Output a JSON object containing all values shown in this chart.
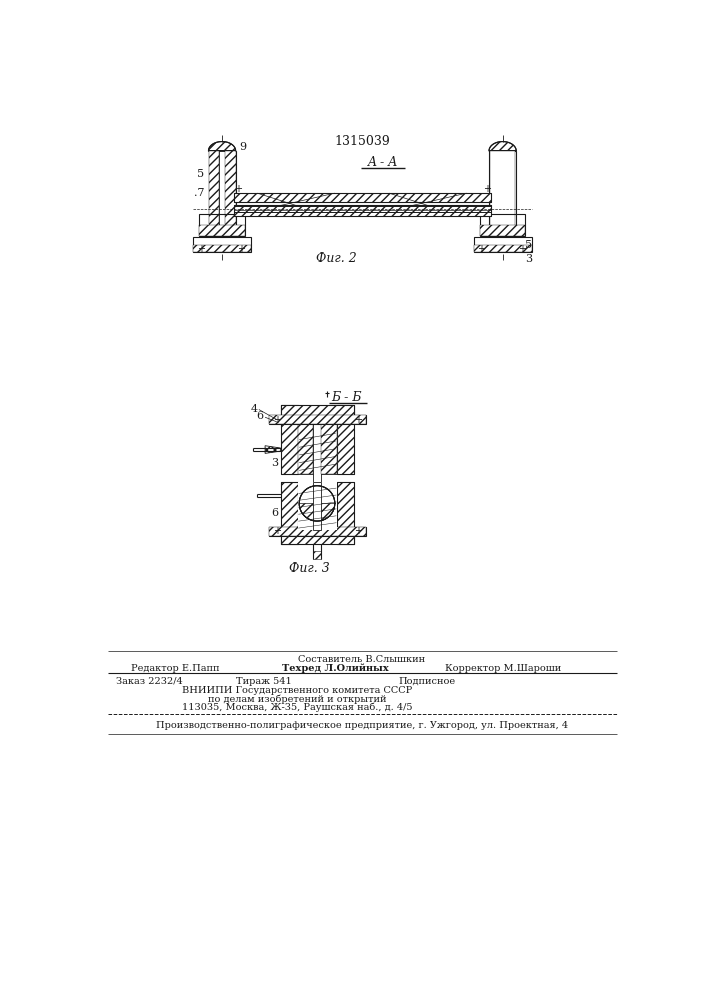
{
  "title": "1315039",
  "fig2_label": "Фиг. 2",
  "fig3_label": "Фиг. 3",
  "section_aa": "A - A",
  "section_bb": "Б - Б",
  "bg_color": "#ffffff",
  "line_color": "#1a1a1a",
  "footer_line0_center": "Составитель В.Слышкин",
  "footer_line1_left": "Редактор Е.Папп",
  "footer_line1_center": "Техред Л.Олийных",
  "footer_line1_right": "Корректор М.Шароши",
  "footer_line2_left": "Заказ 2232/4",
  "footer_line2_center_left": "Тираж 541",
  "footer_line2_center_right": "Подписное",
  "footer_line3": "ВНИИПИ Государственного комитета СССР",
  "footer_line4": "по делам изобретений и открытий",
  "footer_line5": "113035, Москва, Ж-35, Раушская наб., д. 4/5",
  "footer_line6": "Производственно-полиграфическое предприятие, г. Ужгород, ул. Проектная, 4"
}
